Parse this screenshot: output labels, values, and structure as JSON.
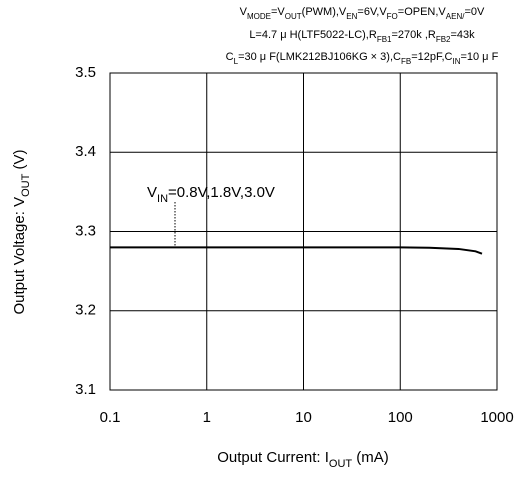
{
  "chart_data": {
    "type": "line",
    "conditions": [
      [
        "V",
        "MODE",
        "=V",
        "OUT",
        "(PWM)",
        "",
        ",V",
        "EN",
        "=6V,V",
        "FO",
        "=OPEN,V",
        "AEN/",
        "=0V"
      ],
      [
        "L=4.7 μ H(LTF5022-LC),R",
        "FB1",
        "=270k   ,R",
        "FB2",
        "=43k"
      ],
      [
        "C",
        "L",
        "=30 μ F(LMK212BJ106KG × 3),C",
        "FB",
        "=12pF,C",
        "IN",
        "=10 μ F"
      ]
    ],
    "xlabel": [
      "Output Current: I",
      "OUT",
      " (mA)"
    ],
    "ylabel": [
      "Output Voltage: V",
      "OUT",
      " (V)"
    ],
    "annotation": [
      "V",
      "IN",
      "=0.8V,1.8V,3.0V"
    ],
    "x": [
      0.1,
      1,
      10,
      100,
      200,
      400,
      600,
      700
    ],
    "series": [
      {
        "name": "VIN=0.8V,1.8V,3.0V",
        "color": "#000000",
        "values": [
          3.28,
          3.28,
          3.28,
          3.28,
          3.2795,
          3.278,
          3.275,
          3.272
        ]
      }
    ],
    "xscale": "log",
    "xlim": [
      0.1,
      1000
    ],
    "xticks": [
      0.1,
      1,
      10,
      100,
      1000
    ],
    "ylim": [
      3.1,
      3.5
    ],
    "yticks": [
      3.1,
      3.2,
      3.3,
      3.4,
      3.5
    ],
    "grid": true
  }
}
